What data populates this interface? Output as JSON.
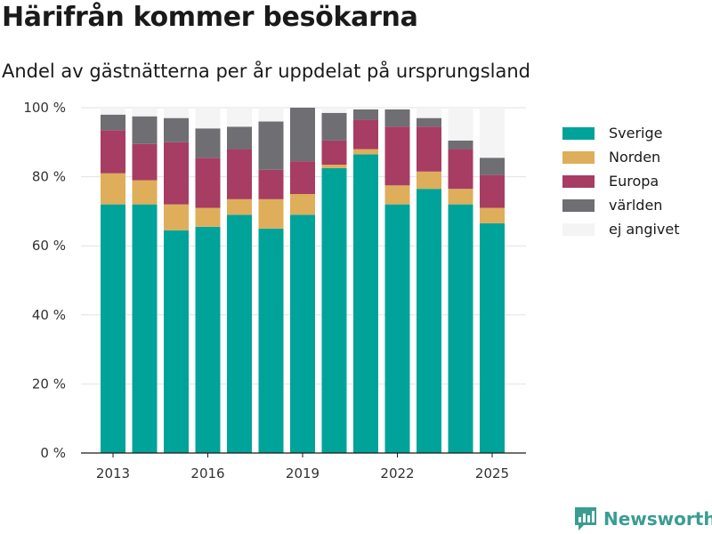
{
  "header": {
    "title": "Härifrån kommer besökarna",
    "subtitle": "Andel av gästnätterna per år uppdelat på ursprungsland"
  },
  "brand": {
    "name": "Newsworthy",
    "color": "#3a9d92",
    "icon": "chat-bubble-bar-chart-icon"
  },
  "chart_data": {
    "type": "bar",
    "stacked": true,
    "categories": [
      2013,
      2014,
      2015,
      2016,
      2017,
      2018,
      2019,
      2020,
      2021,
      2022,
      2023,
      2024,
      2025
    ],
    "x_tick_labels": [
      "2013",
      "2016",
      "2019",
      "2022",
      "2025"
    ],
    "y_tick_labels": [
      "0 %",
      "20 %",
      "40 %",
      "60 %",
      "80 %",
      "100 %"
    ],
    "ylim": [
      0,
      100
    ],
    "y_ticks": [
      0,
      20,
      40,
      60,
      80,
      100
    ],
    "grid": true,
    "legend_position": "right",
    "series": [
      {
        "name": "Sverige",
        "color": "#00a39a",
        "values": [
          72,
          72,
          64.5,
          65.5,
          69,
          65,
          69,
          82.5,
          86.5,
          72,
          76.5,
          72,
          66.5
        ]
      },
      {
        "name": "Norden",
        "color": "#deae5b",
        "values": [
          9,
          7,
          7.5,
          5.5,
          4.5,
          8.5,
          6,
          1,
          1.5,
          5.5,
          5,
          4.5,
          4.5
        ]
      },
      {
        "name": "Europa",
        "color": "#a73d63",
        "values": [
          12.5,
          10.5,
          18,
          14.5,
          14.5,
          8.5,
          9.5,
          7,
          8.5,
          17,
          13,
          11.5,
          9.5
        ]
      },
      {
        "name": "världen",
        "color": "#6e6e73",
        "values": [
          4.5,
          8,
          7,
          8.5,
          6.5,
          14,
          15.5,
          8,
          3,
          5,
          2.5,
          2.5,
          5
        ]
      },
      {
        "name": "ej angivet",
        "color": "#f4f4f4",
        "values": [
          2,
          2.5,
          3,
          6,
          5.5,
          4,
          0,
          1.5,
          0.5,
          0.5,
          3,
          9.5,
          14.5
        ]
      }
    ]
  }
}
